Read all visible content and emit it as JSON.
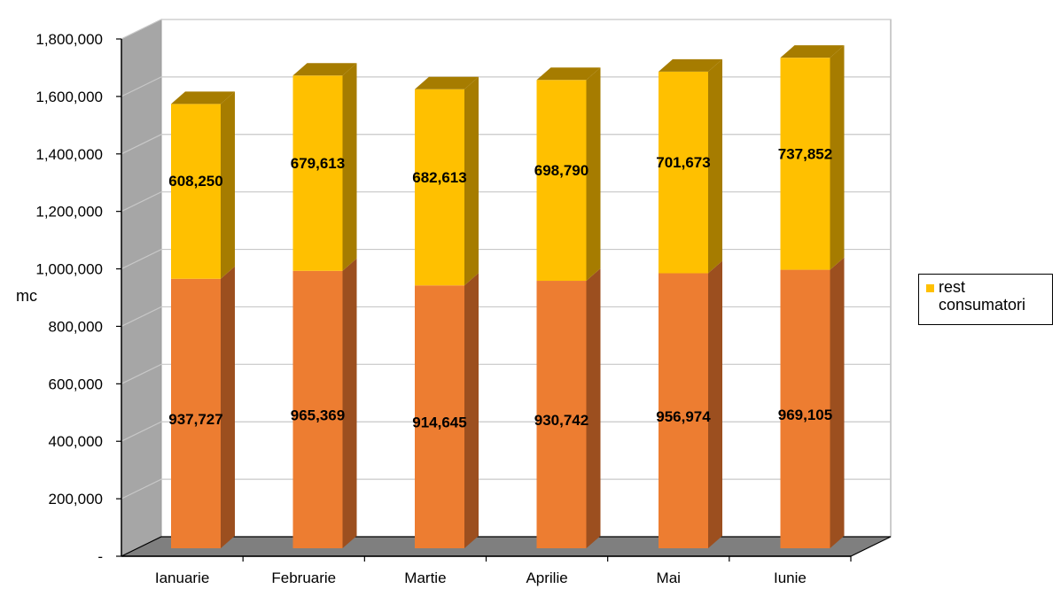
{
  "chart_data": {
    "type": "bar",
    "stacked": true,
    "view": "3d",
    "categories": [
      "Ianuarie",
      "Februarie",
      "Martie",
      "Aprilie",
      "Mai",
      "Iunie"
    ],
    "series": [
      {
        "name": "",
        "color": "#ED7D31",
        "values": [
          937727,
          965369,
          914645,
          930742,
          956974,
          969105
        ]
      },
      {
        "name": "rest consumatori",
        "color": "#FFC000",
        "values": [
          608250,
          679613,
          682613,
          698790,
          701673,
          737852
        ]
      }
    ],
    "data_labels": {
      "bottom": [
        "937,727",
        "965,369",
        "914,645",
        "930,742",
        "956,974",
        "969,105"
      ],
      "top": [
        "608,250",
        "679,613",
        "682,613",
        "698,790",
        "701,673",
        "737,852"
      ]
    },
    "ylabel": "mc",
    "xlabel": "",
    "ylim": [
      0,
      1800000
    ],
    "yticks": [
      "-",
      "200,000",
      "400,000",
      "600,000",
      "800,000",
      "1,000,000",
      "1,200,000",
      "1,400,000",
      "1,600,000",
      "1,800,000"
    ],
    "grid": true,
    "legend_position": "right",
    "colors": {
      "wall": "#A6A6A6",
      "floor": "#7F7F7F",
      "bottom_side": "#9C4F1F",
      "top_side": "#A67C00"
    }
  }
}
